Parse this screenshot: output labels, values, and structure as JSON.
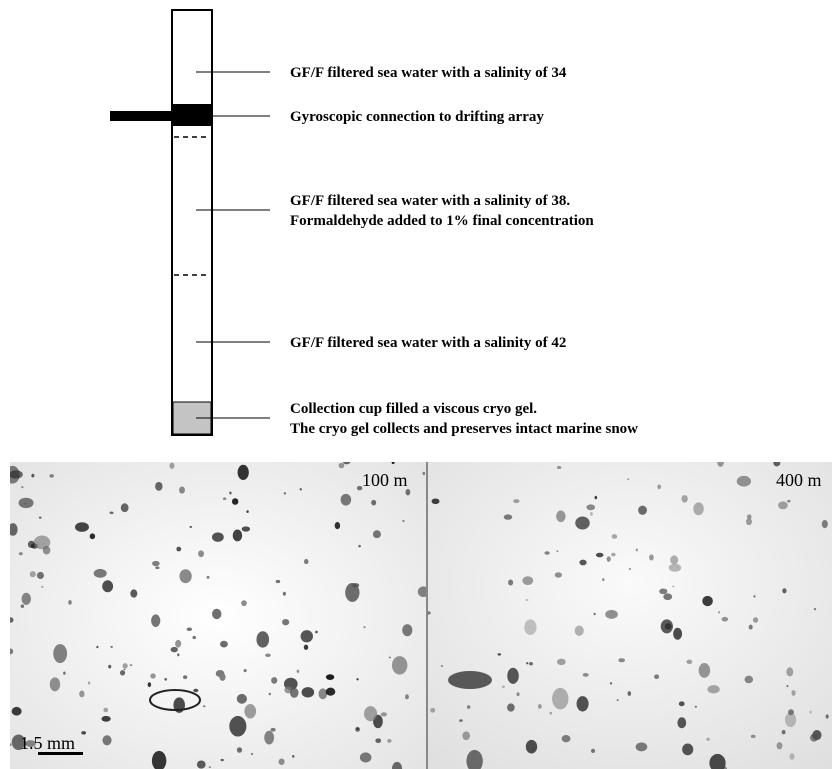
{
  "labels": [
    [
      "GF/F filtered sea water with a salinity of 34"
    ],
    [
      "Gyroscopic connection to drifting array"
    ],
    [
      "GF/F filtered sea water with a salinity of 38.",
      "Formaldehyde added to 1% final concentration"
    ],
    [
      "GF/F filtered sea water with a salinity of 42"
    ],
    [
      "Collection cup filled a viscous cryo gel.",
      "The cryo gel collects and preserves intact marine snow"
    ]
  ],
  "panels": [
    {
      "depth": "100 m",
      "scale": "1.5 mm"
    },
    {
      "depth": "400 m"
    }
  ]
}
